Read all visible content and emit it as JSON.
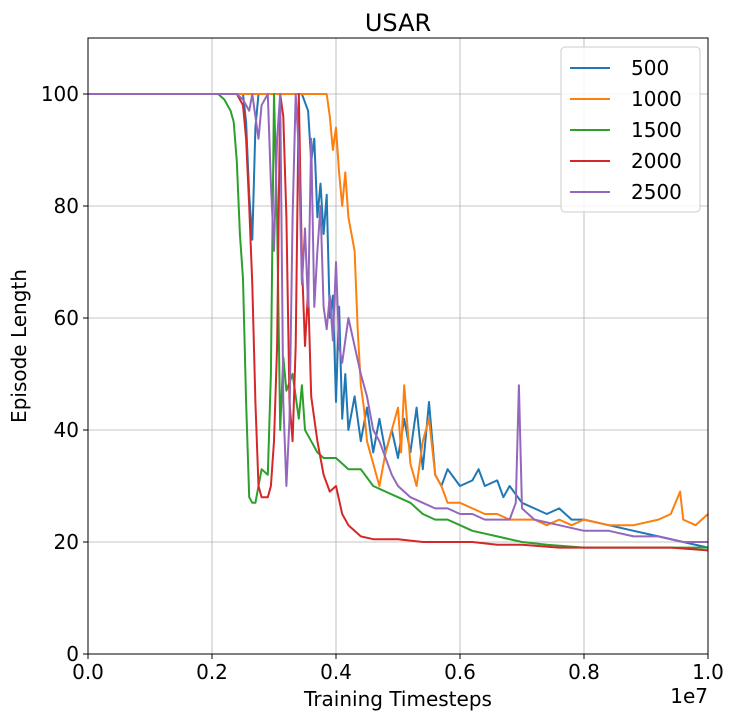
{
  "chart_data": {
    "type": "line",
    "title": "USAR",
    "xlabel": "Training Timesteps",
    "ylabel": "Episode Length",
    "x_offset_label": "1e7",
    "xlim": [
      0,
      1.0
    ],
    "ylim": [
      0,
      110
    ],
    "x_ticks": [
      0.0,
      0.2,
      0.4,
      0.6,
      0.8,
      1.0
    ],
    "x_tick_labels": [
      "0.0",
      "0.2",
      "0.4",
      "0.6",
      "0.8",
      "1.0"
    ],
    "y_ticks": [
      0,
      20,
      40,
      60,
      80,
      100
    ],
    "y_tick_labels": [
      "0",
      "20",
      "40",
      "60",
      "80",
      "100"
    ],
    "grid": true,
    "legend_position": "top-right",
    "series": [
      {
        "name": "500",
        "color": "#1f77b4",
        "points": [
          [
            0,
            100
          ],
          [
            0.25,
            100
          ],
          [
            0.255,
            95
          ],
          [
            0.26,
            82
          ],
          [
            0.265,
            74
          ],
          [
            0.27,
            94
          ],
          [
            0.275,
            100
          ],
          [
            0.32,
            100
          ],
          [
            0.345,
            100
          ],
          [
            0.355,
            97
          ],
          [
            0.36,
            88
          ],
          [
            0.365,
            92
          ],
          [
            0.37,
            78
          ],
          [
            0.375,
            84
          ],
          [
            0.38,
            75
          ],
          [
            0.385,
            82
          ],
          [
            0.39,
            60
          ],
          [
            0.395,
            64
          ],
          [
            0.4,
            45
          ],
          [
            0.405,
            62
          ],
          [
            0.41,
            42
          ],
          [
            0.415,
            50
          ],
          [
            0.42,
            40
          ],
          [
            0.43,
            46
          ],
          [
            0.44,
            38
          ],
          [
            0.45,
            44
          ],
          [
            0.46,
            36
          ],
          [
            0.47,
            42
          ],
          [
            0.48,
            36
          ],
          [
            0.49,
            40
          ],
          [
            0.5,
            35
          ],
          [
            0.51,
            42
          ],
          [
            0.52,
            36
          ],
          [
            0.53,
            44
          ],
          [
            0.54,
            33
          ],
          [
            0.55,
            45
          ],
          [
            0.56,
            32
          ],
          [
            0.57,
            30
          ],
          [
            0.58,
            33
          ],
          [
            0.6,
            30
          ],
          [
            0.62,
            31
          ],
          [
            0.63,
            33
          ],
          [
            0.64,
            30
          ],
          [
            0.66,
            31
          ],
          [
            0.67,
            28
          ],
          [
            0.68,
            30
          ],
          [
            0.7,
            27
          ],
          [
            0.72,
            26
          ],
          [
            0.74,
            25
          ],
          [
            0.76,
            26
          ],
          [
            0.78,
            24
          ],
          [
            0.8,
            24
          ],
          [
            0.84,
            23
          ],
          [
            0.88,
            22
          ],
          [
            0.92,
            21
          ],
          [
            0.96,
            20
          ],
          [
            1.0,
            19
          ]
        ]
      },
      {
        "name": "1000",
        "color": "#ff7f0e",
        "points": [
          [
            0,
            100
          ],
          [
            0.385,
            100
          ],
          [
            0.39,
            96
          ],
          [
            0.395,
            90
          ],
          [
            0.4,
            94
          ],
          [
            0.405,
            86
          ],
          [
            0.41,
            80
          ],
          [
            0.415,
            86
          ],
          [
            0.42,
            78
          ],
          [
            0.43,
            72
          ],
          [
            0.435,
            58
          ],
          [
            0.44,
            48
          ],
          [
            0.445,
            44
          ],
          [
            0.45,
            38
          ],
          [
            0.46,
            34
          ],
          [
            0.47,
            30
          ],
          [
            0.48,
            36
          ],
          [
            0.49,
            40
          ],
          [
            0.5,
            44
          ],
          [
            0.505,
            36
          ],
          [
            0.51,
            48
          ],
          [
            0.52,
            34
          ],
          [
            0.53,
            30
          ],
          [
            0.54,
            38
          ],
          [
            0.55,
            42
          ],
          [
            0.56,
            32
          ],
          [
            0.57,
            30
          ],
          [
            0.58,
            27
          ],
          [
            0.6,
            27
          ],
          [
            0.62,
            26
          ],
          [
            0.64,
            25
          ],
          [
            0.66,
            25
          ],
          [
            0.68,
            24
          ],
          [
            0.7,
            24
          ],
          [
            0.72,
            24
          ],
          [
            0.74,
            23
          ],
          [
            0.76,
            24
          ],
          [
            0.78,
            23
          ],
          [
            0.8,
            24
          ],
          [
            0.84,
            23
          ],
          [
            0.88,
            23
          ],
          [
            0.92,
            24
          ],
          [
            0.94,
            25
          ],
          [
            0.955,
            29
          ],
          [
            0.96,
            24
          ],
          [
            0.98,
            23
          ],
          [
            1.0,
            25
          ]
        ]
      },
      {
        "name": "1500",
        "color": "#2ca02c",
        "points": [
          [
            0,
            100
          ],
          [
            0.21,
            100
          ],
          [
            0.22,
            99
          ],
          [
            0.23,
            97
          ],
          [
            0.235,
            95
          ],
          [
            0.24,
            88
          ],
          [
            0.245,
            75
          ],
          [
            0.25,
            67
          ],
          [
            0.255,
            45
          ],
          [
            0.26,
            28
          ],
          [
            0.265,
            27
          ],
          [
            0.27,
            27
          ],
          [
            0.275,
            30
          ],
          [
            0.28,
            33
          ],
          [
            0.29,
            32
          ],
          [
            0.295,
            50
          ],
          [
            0.3,
            100
          ],
          [
            0.305,
            78
          ],
          [
            0.31,
            40
          ],
          [
            0.315,
            53
          ],
          [
            0.32,
            47
          ],
          [
            0.33,
            50
          ],
          [
            0.34,
            42
          ],
          [
            0.345,
            48
          ],
          [
            0.35,
            40
          ],
          [
            0.36,
            38
          ],
          [
            0.37,
            36
          ],
          [
            0.38,
            35
          ],
          [
            0.4,
            35
          ],
          [
            0.42,
            33
          ],
          [
            0.44,
            33
          ],
          [
            0.46,
            30
          ],
          [
            0.48,
            29
          ],
          [
            0.5,
            28
          ],
          [
            0.52,
            27
          ],
          [
            0.54,
            25
          ],
          [
            0.56,
            24
          ],
          [
            0.58,
            24
          ],
          [
            0.6,
            23
          ],
          [
            0.62,
            22
          ],
          [
            0.66,
            21
          ],
          [
            0.7,
            20
          ],
          [
            0.74,
            19.5
          ],
          [
            0.8,
            19
          ],
          [
            0.86,
            19
          ],
          [
            0.92,
            19
          ],
          [
            1.0,
            19
          ]
        ]
      },
      {
        "name": "2000",
        "color": "#d62728",
        "points": [
          [
            0,
            100
          ],
          [
            0.24,
            100
          ],
          [
            0.25,
            98
          ],
          [
            0.255,
            92
          ],
          [
            0.26,
            80
          ],
          [
            0.265,
            66
          ],
          [
            0.27,
            45
          ],
          [
            0.275,
            30
          ],
          [
            0.28,
            28
          ],
          [
            0.29,
            28
          ],
          [
            0.295,
            30
          ],
          [
            0.3,
            38
          ],
          [
            0.305,
            55
          ],
          [
            0.31,
            100
          ],
          [
            0.315,
            96
          ],
          [
            0.32,
            78
          ],
          [
            0.325,
            45
          ],
          [
            0.33,
            38
          ],
          [
            0.335,
            55
          ],
          [
            0.34,
            100
          ],
          [
            0.345,
            70
          ],
          [
            0.35,
            55
          ],
          [
            0.355,
            65
          ],
          [
            0.36,
            46
          ],
          [
            0.37,
            38
          ],
          [
            0.38,
            32
          ],
          [
            0.39,
            29
          ],
          [
            0.4,
            30
          ],
          [
            0.41,
            25
          ],
          [
            0.42,
            23
          ],
          [
            0.44,
            21
          ],
          [
            0.46,
            20.5
          ],
          [
            0.5,
            20.5
          ],
          [
            0.54,
            20
          ],
          [
            0.58,
            20
          ],
          [
            0.62,
            20
          ],
          [
            0.66,
            19.5
          ],
          [
            0.7,
            19.5
          ],
          [
            0.76,
            19
          ],
          [
            0.82,
            19
          ],
          [
            0.88,
            19
          ],
          [
            0.94,
            19
          ],
          [
            1.0,
            18.5
          ]
        ]
      },
      {
        "name": "2500",
        "color": "#9467bd",
        "points": [
          [
            0,
            100
          ],
          [
            0.24,
            100
          ],
          [
            0.25,
            99
          ],
          [
            0.26,
            97
          ],
          [
            0.265,
            100
          ],
          [
            0.27,
            96
          ],
          [
            0.275,
            92
          ],
          [
            0.28,
            98
          ],
          [
            0.29,
            100
          ],
          [
            0.295,
            84
          ],
          [
            0.3,
            72
          ],
          [
            0.305,
            92
          ],
          [
            0.31,
            100
          ],
          [
            0.315,
            45
          ],
          [
            0.32,
            30
          ],
          [
            0.325,
            42
          ],
          [
            0.33,
            78
          ],
          [
            0.335,
            100
          ],
          [
            0.34,
            90
          ],
          [
            0.345,
            66
          ],
          [
            0.35,
            76
          ],
          [
            0.355,
            62
          ],
          [
            0.36,
            92
          ],
          [
            0.365,
            62
          ],
          [
            0.37,
            72
          ],
          [
            0.375,
            80
          ],
          [
            0.38,
            62
          ],
          [
            0.385,
            58
          ],
          [
            0.39,
            64
          ],
          [
            0.395,
            56
          ],
          [
            0.4,
            70
          ],
          [
            0.405,
            55
          ],
          [
            0.41,
            52
          ],
          [
            0.42,
            60
          ],
          [
            0.43,
            55
          ],
          [
            0.44,
            50
          ],
          [
            0.45,
            46
          ],
          [
            0.46,
            40
          ],
          [
            0.47,
            38
          ],
          [
            0.48,
            35
          ],
          [
            0.49,
            32
          ],
          [
            0.5,
            30
          ],
          [
            0.52,
            28
          ],
          [
            0.54,
            27
          ],
          [
            0.56,
            26
          ],
          [
            0.58,
            26
          ],
          [
            0.6,
            25
          ],
          [
            0.62,
            25
          ],
          [
            0.64,
            24
          ],
          [
            0.66,
            24
          ],
          [
            0.68,
            24
          ],
          [
            0.69,
            27
          ],
          [
            0.695,
            48
          ],
          [
            0.7,
            26
          ],
          [
            0.72,
            24
          ],
          [
            0.76,
            23
          ],
          [
            0.8,
            22
          ],
          [
            0.84,
            22
          ],
          [
            0.88,
            21
          ],
          [
            0.92,
            21
          ],
          [
            0.96,
            20
          ],
          [
            1.0,
            20
          ]
        ]
      }
    ]
  }
}
